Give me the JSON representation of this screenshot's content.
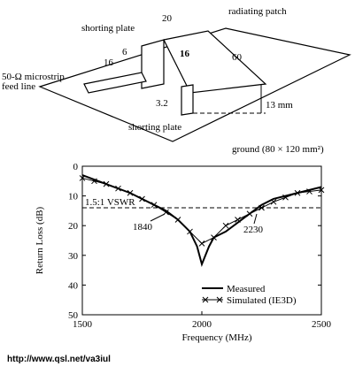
{
  "diagram": {
    "shorting_plate_top": "shorting plate",
    "width_20": "20",
    "radiating_patch": "radiating patch",
    "dim_6": "6",
    "dim_16_bold": "16",
    "dim_16": "16",
    "dim_60": "60",
    "feed_line": [
      "50-Ω microstrip",
      "feed line"
    ],
    "dim_3_2": "3.2",
    "height": "13 mm",
    "shorting_plate_bottom": "shorting plate",
    "ground": "ground (80 × 120 mm²)"
  },
  "chart_data": {
    "type": "line",
    "x_label": "Frequency (MHz)",
    "y_label": "Return Loss (dB)",
    "xlim": [
      1500,
      2500
    ],
    "xticks": [
      1500,
      2000,
      2500
    ],
    "ylim": [
      0,
      50
    ],
    "yticks": [
      0,
      10,
      20,
      30,
      40,
      50
    ],
    "y_inverted": true,
    "reference_line": {
      "value": 14,
      "label": "1.5:1 VSWR"
    },
    "annotations": [
      "1840",
      "2230"
    ],
    "legend": "lower right",
    "series": [
      {
        "name": "Measured",
        "color": "#000000",
        "marker": "none",
        "x": [
          1500,
          1600,
          1700,
          1800,
          1850,
          1900,
          1950,
          1980,
          2000,
          2030,
          2050,
          2100,
          2150,
          2200,
          2250,
          2300,
          2400,
          2500
        ],
        "values": [
          3,
          6,
          9,
          13,
          15,
          18,
          22,
          27,
          33,
          27,
          24,
          22,
          19,
          16,
          13,
          11,
          9,
          7
        ]
      },
      {
        "name": "Simulated (IE3D)",
        "color": "#000000",
        "marker": "x",
        "x": [
          1500,
          1550,
          1600,
          1650,
          1700,
          1750,
          1800,
          1850,
          1900,
          1950,
          2000,
          2050,
          2100,
          2150,
          2200,
          2250,
          2300,
          2350,
          2400,
          2450,
          2500
        ],
        "values": [
          4,
          5,
          6,
          7.5,
          9,
          11,
          13,
          15.5,
          18,
          22,
          26,
          24,
          20,
          18,
          16,
          14,
          12,
          10.5,
          9,
          8.5,
          8
        ]
      }
    ]
  },
  "footer": "http://www.qsl.net/va3iul"
}
